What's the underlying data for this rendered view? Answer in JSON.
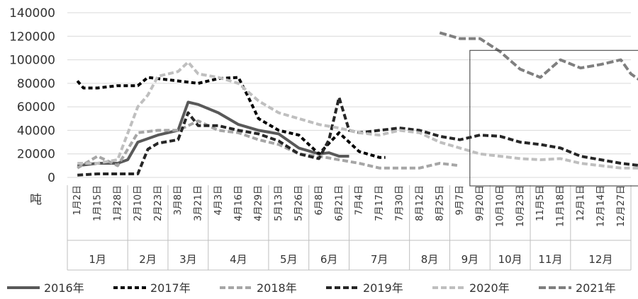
{
  "chart_data": {
    "type": "line",
    "unit": "吨",
    "ylim": [
      0,
      140000
    ],
    "y_ticks": [
      0,
      20000,
      40000,
      60000,
      80000,
      100000,
      120000,
      140000
    ],
    "y_tick_labels": [
      "0",
      "20000",
      "40000",
      "60000",
      "80000",
      "100000",
      "120000",
      "140000"
    ],
    "x_tick_labels": [
      "1月2日",
      "1月15日",
      "1月28日",
      "2月10日",
      "2月23日",
      "3月8日",
      "3月21日",
      "4月3日",
      "4月16日",
      "4月29日",
      "5月13日",
      "5月26日",
      "6月8日",
      "6月21日",
      "7月4日",
      "7月17日",
      "7月30日",
      "8月12日",
      "8月25日",
      "9月7日",
      "9月20日",
      "10月10日",
      "10月23日",
      "11月5日",
      "11月18日",
      "12月1日",
      "12月14日",
      "12月27日"
    ],
    "months": [
      {
        "label": "1月",
        "start": 0,
        "end": 3
      },
      {
        "label": "2月",
        "start": 3,
        "end": 5
      },
      {
        "label": "3月",
        "start": 5,
        "end": 7
      },
      {
        "label": "4月",
        "start": 7,
        "end": 10
      },
      {
        "label": "5月",
        "start": 10,
        "end": 12
      },
      {
        "label": "6月",
        "start": 12,
        "end": 14
      },
      {
        "label": "7月",
        "start": 14,
        "end": 17
      },
      {
        "label": "8月",
        "start": 17,
        "end": 19
      },
      {
        "label": "9月",
        "start": 19,
        "end": 21
      },
      {
        "label": "10月",
        "start": 21,
        "end": 23
      },
      {
        "label": "11月",
        "start": 23,
        "end": 25
      },
      {
        "label": "12月",
        "start": 25,
        "end": 28
      }
    ],
    "series": [
      {
        "name": "2016年",
        "color": "#595959",
        "dash": "none",
        "points": [
          [
            0,
            10000
          ],
          [
            1,
            12000
          ],
          [
            2,
            12000
          ],
          [
            2.5,
            15000
          ],
          [
            3,
            30000
          ],
          [
            4,
            36000
          ],
          [
            5,
            40000
          ],
          [
            5.5,
            64000
          ],
          [
            6,
            62000
          ],
          [
            7,
            55000
          ],
          [
            8,
            45000
          ],
          [
            9,
            40000
          ],
          [
            10,
            37000
          ],
          [
            11,
            25000
          ],
          [
            12,
            20000
          ],
          [
            12.5,
            21000
          ],
          [
            13,
            18000
          ],
          [
            13.5,
            18000
          ]
        ]
      },
      {
        "name": "2017年",
        "color": "#000000",
        "dash": "6,4",
        "points": [
          [
            0,
            82000
          ],
          [
            0.3,
            76000
          ],
          [
            1,
            76000
          ],
          [
            2,
            78000
          ],
          [
            3,
            78000
          ],
          [
            3.5,
            85000
          ],
          [
            4,
            84000
          ],
          [
            5,
            82000
          ],
          [
            6,
            80000
          ],
          [
            7,
            84000
          ],
          [
            8,
            85000
          ],
          [
            8.5,
            68000
          ],
          [
            9,
            50000
          ],
          [
            10,
            40000
          ],
          [
            11,
            36000
          ],
          [
            12,
            20000
          ],
          [
            13,
            38000
          ],
          [
            14,
            22000
          ],
          [
            15,
            17000
          ],
          [
            15.3,
            17000
          ]
        ]
      },
      {
        "name": "2018年",
        "color": "#a6a6a6",
        "dash": "8,4",
        "points": [
          [
            0,
            8000
          ],
          [
            1,
            18000
          ],
          [
            2,
            10000
          ],
          [
            3,
            38000
          ],
          [
            4,
            40000
          ],
          [
            5,
            40000
          ],
          [
            6,
            48000
          ],
          [
            7,
            40000
          ],
          [
            8,
            38000
          ],
          [
            9,
            32000
          ],
          [
            10,
            28000
          ],
          [
            11,
            20000
          ],
          [
            12,
            18000
          ],
          [
            13,
            15000
          ],
          [
            14,
            12000
          ],
          [
            15,
            8000
          ],
          [
            16,
            8000
          ],
          [
            17,
            8000
          ],
          [
            18,
            12000
          ],
          [
            19,
            10000
          ]
        ]
      },
      {
        "name": "2019年",
        "color": "#262626",
        "dash": "8,4",
        "points": [
          [
            0,
            2000
          ],
          [
            1,
            3000
          ],
          [
            2,
            3000
          ],
          [
            3,
            3000
          ],
          [
            3.5,
            24000
          ],
          [
            4,
            29000
          ],
          [
            5,
            32000
          ],
          [
            5.5,
            55000
          ],
          [
            6,
            44000
          ],
          [
            7,
            44000
          ],
          [
            8,
            40000
          ],
          [
            9,
            37000
          ],
          [
            10,
            31000
          ],
          [
            11,
            20000
          ],
          [
            12,
            16000
          ],
          [
            12.5,
            32000
          ],
          [
            13,
            68000
          ],
          [
            13.5,
            40000
          ],
          [
            14,
            38000
          ],
          [
            15,
            40000
          ],
          [
            16,
            42000
          ],
          [
            17,
            40000
          ],
          [
            18,
            35000
          ],
          [
            19,
            32000
          ],
          [
            20,
            36000
          ],
          [
            21,
            35000
          ],
          [
            22,
            30000
          ],
          [
            23,
            28000
          ],
          [
            24,
            25000
          ],
          [
            25,
            18000
          ],
          [
            26,
            15000
          ],
          [
            27,
            12000
          ],
          [
            28,
            10000
          ]
        ]
      },
      {
        "name": "2020年",
        "color": "#bfbfbf",
        "dash": "8,4",
        "points": [
          [
            0,
            12000
          ],
          [
            1,
            12000
          ],
          [
            2,
            15000
          ],
          [
            3,
            60000
          ],
          [
            3.5,
            70000
          ],
          [
            4,
            86000
          ],
          [
            5,
            90000
          ],
          [
            5.5,
            98000
          ],
          [
            6,
            88000
          ],
          [
            7,
            85000
          ],
          [
            8,
            80000
          ],
          [
            9,
            65000
          ],
          [
            10,
            55000
          ],
          [
            11,
            50000
          ],
          [
            12,
            45000
          ],
          [
            13,
            42000
          ],
          [
            14,
            38000
          ],
          [
            15,
            36000
          ],
          [
            16,
            40000
          ],
          [
            17,
            38000
          ],
          [
            18,
            30000
          ],
          [
            19,
            25000
          ],
          [
            20,
            20000
          ],
          [
            21,
            18000
          ],
          [
            22,
            16000
          ],
          [
            23,
            15000
          ],
          [
            24,
            16000
          ],
          [
            25,
            12000
          ],
          [
            26,
            10000
          ],
          [
            27,
            8000
          ],
          [
            28,
            8000
          ]
        ]
      },
      {
        "name": "2021年",
        "color": "#7f7f7f",
        "dash": "10,4",
        "points": [
          [
            18,
            123000
          ],
          [
            19,
            118000
          ],
          [
            20,
            118000
          ],
          [
            21,
            107000
          ],
          [
            22,
            92000
          ],
          [
            23,
            85000
          ],
          [
            24,
            100000
          ],
          [
            25,
            93000
          ],
          [
            26,
            96000
          ],
          [
            27,
            100000
          ],
          [
            27.5,
            88000
          ],
          [
            28,
            82000
          ]
        ]
      }
    ],
    "legend": {
      "position": "bottom"
    },
    "annotation_box": {
      "x_from": 19.5,
      "x_to": 28,
      "y_from": 0,
      "y_to": 108000
    }
  }
}
